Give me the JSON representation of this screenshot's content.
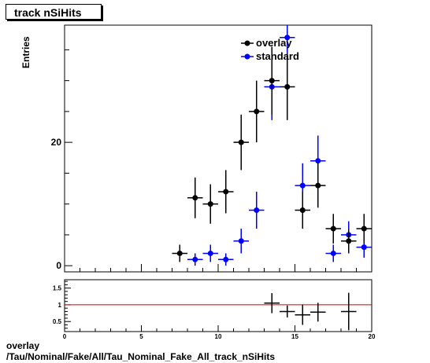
{
  "title": "track nSiHits",
  "footer": {
    "line1": "overlay",
    "line2": "/Tau/Nominal/Fake/All/Tau_Nominal_Fake_All_track_nSiHits"
  },
  "chart_data": [
    {
      "type": "scatter",
      "title": "track nSiHits",
      "ylabel": "Entries",
      "xlim": [
        0,
        20
      ],
      "ylim": [
        -1,
        39
      ],
      "y_ticks": [
        0,
        20
      ],
      "legend_placement": "top-center",
      "series": [
        {
          "name": "overlay",
          "color": "#000000",
          "points": [
            {
              "x": 7.5,
              "y": 2,
              "err": 1.4
            },
            {
              "x": 8.5,
              "y": 11,
              "err": 3.3
            },
            {
              "x": 9.5,
              "y": 10,
              "err": 3.2
            },
            {
              "x": 10.5,
              "y": 12,
              "err": 3.5
            },
            {
              "x": 11.5,
              "y": 20,
              "err": 4.5
            },
            {
              "x": 12.5,
              "y": 25,
              "err": 5.0
            },
            {
              "x": 13.5,
              "y": 30,
              "err": 5.5
            },
            {
              "x": 14.5,
              "y": 29,
              "err": 5.4
            },
            {
              "x": 15.5,
              "y": 9,
              "err": 3.0
            },
            {
              "x": 16.5,
              "y": 13,
              "err": 3.6
            },
            {
              "x": 17.5,
              "y": 6,
              "err": 2.4
            },
            {
              "x": 18.5,
              "y": 4,
              "err": 2.0
            },
            {
              "x": 19.5,
              "y": 6,
              "err": 2.4
            }
          ]
        },
        {
          "name": "standard",
          "color": "#0000ff",
          "points": [
            {
              "x": 8.5,
              "y": 1,
              "err": 1.0
            },
            {
              "x": 9.5,
              "y": 2,
              "err": 1.4
            },
            {
              "x": 10.5,
              "y": 1,
              "err": 1.0
            },
            {
              "x": 11.5,
              "y": 4,
              "err": 2.0
            },
            {
              "x": 12.5,
              "y": 9,
              "err": 3.0
            },
            {
              "x": 13.5,
              "y": 29,
              "err": 5.4
            },
            {
              "x": 14.5,
              "y": 37,
              "err": 6.1
            },
            {
              "x": 15.5,
              "y": 13,
              "err": 3.6
            },
            {
              "x": 16.5,
              "y": 17,
              "err": 4.1
            },
            {
              "x": 17.5,
              "y": 2,
              "err": 1.4
            },
            {
              "x": 18.5,
              "y": 5,
              "err": 2.2
            },
            {
              "x": 19.5,
              "y": 3,
              "err": 1.7
            }
          ]
        }
      ]
    },
    {
      "type": "scatter",
      "title": "",
      "xlim": [
        0,
        20
      ],
      "ylim": [
        0.2,
        1.75
      ],
      "x_ticks": [
        0,
        5,
        10,
        15,
        20
      ],
      "y_ticks": [
        0.5,
        1,
        1.5
      ],
      "reference_line": {
        "y": 1,
        "color": "#cc0000"
      },
      "series": [
        {
          "name": "",
          "color": "#000000",
          "points": [
            {
              "x": 13.5,
              "y": 1.05,
              "err": 0.3
            },
            {
              "x": 14.5,
              "y": 0.8,
              "err": 0.18
            },
            {
              "x": 15.5,
              "y": 0.7,
              "err": 0.3
            },
            {
              "x": 16.5,
              "y": 0.78,
              "err": 0.28
            },
            {
              "x": 18.5,
              "y": 0.8,
              "err": 0.56
            }
          ]
        }
      ]
    }
  ]
}
